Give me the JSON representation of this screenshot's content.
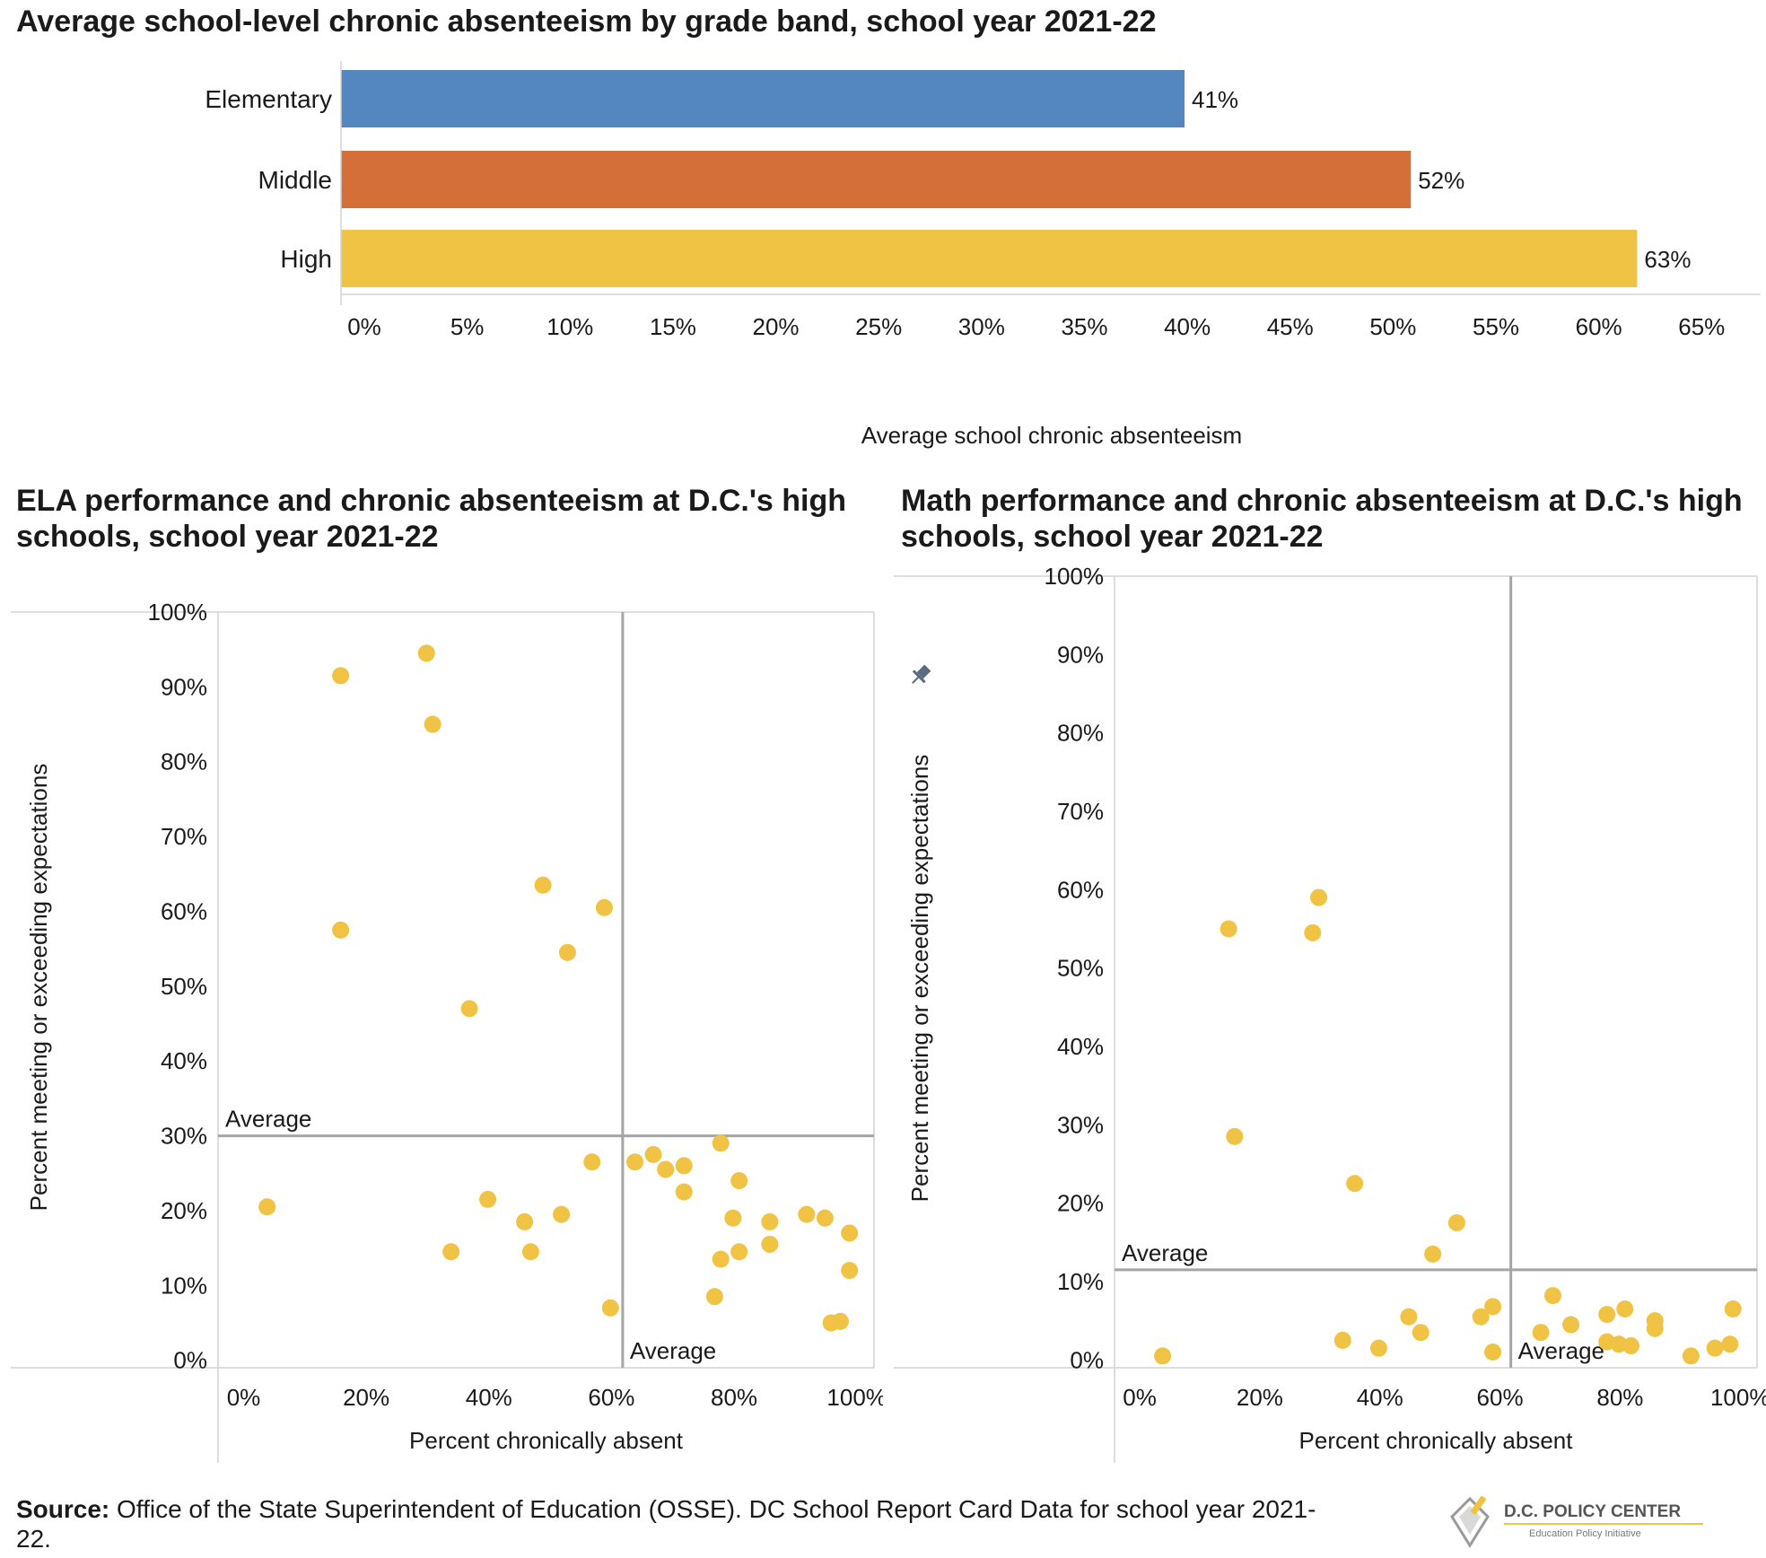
{
  "bar_title": "Average school-level chronic absenteeism by grade band, school year 2021-22",
  "ela_title": "ELA performance and chronic absenteeism at D.C.'s high schools, school year 2021-22",
  "math_title": "Math performance and chronic absenteeism at D.C.'s high schools, school year 2021-22",
  "source": {
    "label": "Source:",
    "text": " Office of the State Superintendent of Education (OSSE). DC School Report Card Data for school year 2021-22."
  },
  "logo": {
    "name": "D.C. POLICY CENTER",
    "sub": "Education Policy Initiative"
  },
  "colors": {
    "elementary": "#5487bf",
    "middle": "#d46f39",
    "high": "#f0c344",
    "dot": "#f0c344",
    "avg_line": "#a5a5a5",
    "axis": "#d4d4d4"
  },
  "chart_data": [
    {
      "type": "bar",
      "orientation": "horizontal",
      "categories": [
        "Elementary",
        "Middle",
        "High"
      ],
      "values": [
        41,
        52,
        63
      ],
      "value_labels": [
        "41%",
        "52%",
        "63%"
      ],
      "xlabel": "Average school chronic absenteeism",
      "xlim": [
        0,
        69
      ],
      "xticks": [
        0,
        5,
        10,
        15,
        20,
        25,
        30,
        35,
        40,
        45,
        50,
        55,
        60,
        65
      ],
      "xtick_labels": [
        "0%",
        "5%",
        "10%",
        "15%",
        "20%",
        "25%",
        "30%",
        "35%",
        "40%",
        "45%",
        "50%",
        "55%",
        "60%",
        "65%"
      ],
      "grid": false
    },
    {
      "type": "scatter",
      "subject": "ELA",
      "xlabel": "Percent chronically absent",
      "ylabel": "Percent meeting or exceeding expectations",
      "xlim": [
        -3,
        104
      ],
      "ylim": [
        -1,
        100
      ],
      "xticks": [
        0,
        20,
        40,
        60,
        80,
        100
      ],
      "xtick_labels": [
        "0%",
        "20%",
        "40%",
        "60%",
        "80%",
        "100%"
      ],
      "yticks": [
        0,
        10,
        20,
        30,
        40,
        50,
        60,
        70,
        80,
        90,
        100
      ],
      "ytick_labels": [
        "0%",
        "10%",
        "20%",
        "30%",
        "40%",
        "50%",
        "60%",
        "70%",
        "80%",
        "90%",
        "100%"
      ],
      "avg_x": 63,
      "avg_y": 30,
      "avg_x_label": "Average",
      "avg_y_label": "Average",
      "points": [
        {
          "x": 5,
          "y": 20.5
        },
        {
          "x": 17,
          "y": 91.5
        },
        {
          "x": 17,
          "y": 57.5
        },
        {
          "x": 31,
          "y": 94.5
        },
        {
          "x": 32,
          "y": 85
        },
        {
          "x": 35,
          "y": 14.5
        },
        {
          "x": 38,
          "y": 47
        },
        {
          "x": 41,
          "y": 21.5
        },
        {
          "x": 47,
          "y": 18.5
        },
        {
          "x": 48,
          "y": 14.5
        },
        {
          "x": 50,
          "y": 63.5
        },
        {
          "x": 53,
          "y": 19.5
        },
        {
          "x": 54,
          "y": 54.5
        },
        {
          "x": 58,
          "y": 26.5
        },
        {
          "x": 60,
          "y": 60.5
        },
        {
          "x": 61,
          "y": 7
        },
        {
          "x": 65,
          "y": 26.5
        },
        {
          "x": 68,
          "y": 27.5
        },
        {
          "x": 70,
          "y": 25.5
        },
        {
          "x": 73,
          "y": 26
        },
        {
          "x": 73,
          "y": 22.5
        },
        {
          "x": 78,
          "y": 8.5
        },
        {
          "x": 79,
          "y": 29
        },
        {
          "x": 79,
          "y": 13.5
        },
        {
          "x": 81,
          "y": 19
        },
        {
          "x": 82,
          "y": 24
        },
        {
          "x": 82,
          "y": 14.5
        },
        {
          "x": 87,
          "y": 18.5
        },
        {
          "x": 87,
          "y": 15.5
        },
        {
          "x": 93,
          "y": 19.5
        },
        {
          "x": 96,
          "y": 19
        },
        {
          "x": 97,
          "y": 5
        },
        {
          "x": 98.5,
          "y": 5.2
        },
        {
          "x": 100,
          "y": 17
        },
        {
          "x": 100,
          "y": 12
        }
      ]
    },
    {
      "type": "scatter",
      "subject": "Math",
      "xlabel": "Percent chronically absent",
      "ylabel": "Percent meeting or exceeding expectations",
      "xlim": [
        -3,
        104
      ],
      "ylim": [
        -1,
        100
      ],
      "xticks": [
        0,
        20,
        40,
        60,
        80,
        100
      ],
      "xtick_labels": [
        "0%",
        "20%",
        "40%",
        "60%",
        "80%",
        "100%"
      ],
      "yticks": [
        0,
        10,
        20,
        30,
        40,
        50,
        60,
        70,
        80,
        90,
        100
      ],
      "ytick_labels": [
        "0%",
        "10%",
        "20%",
        "30%",
        "40%",
        "50%",
        "60%",
        "70%",
        "80%",
        "90%",
        "100%"
      ],
      "avg_x": 63,
      "avg_y": 11.5,
      "avg_x_label": "Average",
      "avg_y_label": "Average",
      "points": [
        {
          "x": 5,
          "y": 0.5
        },
        {
          "x": 16,
          "y": 55
        },
        {
          "x": 17,
          "y": 28.5
        },
        {
          "x": 30,
          "y": 54.5
        },
        {
          "x": 31,
          "y": 59
        },
        {
          "x": 35,
          "y": 2.5
        },
        {
          "x": 37,
          "y": 22.5
        },
        {
          "x": 41,
          "y": 1.5
        },
        {
          "x": 46,
          "y": 5.5
        },
        {
          "x": 48,
          "y": 3.5
        },
        {
          "x": 50,
          "y": 13.5
        },
        {
          "x": 54,
          "y": 17.5
        },
        {
          "x": 58,
          "y": 5.5
        },
        {
          "x": 60,
          "y": 6.8
        },
        {
          "x": 60,
          "y": 1
        },
        {
          "x": 68,
          "y": 3.5
        },
        {
          "x": 70,
          "y": 8.2
        },
        {
          "x": 73,
          "y": 4.5
        },
        {
          "x": 79,
          "y": 5.8
        },
        {
          "x": 79,
          "y": 2.3
        },
        {
          "x": 81,
          "y": 2
        },
        {
          "x": 82,
          "y": 6.5
        },
        {
          "x": 83,
          "y": 1.8
        },
        {
          "x": 87,
          "y": 5
        },
        {
          "x": 87,
          "y": 4
        },
        {
          "x": 93,
          "y": 0.5
        },
        {
          "x": 97,
          "y": 1.5
        },
        {
          "x": 99.5,
          "y": 2
        },
        {
          "x": 100,
          "y": 6.5
        }
      ]
    }
  ]
}
